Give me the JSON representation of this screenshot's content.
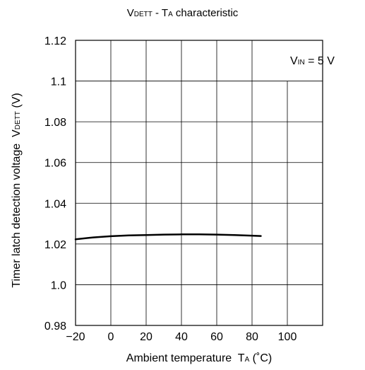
{
  "chart_data": {
    "type": "line",
    "title": {
      "symbol_main": "V",
      "symbol_sub": "DETT",
      "sep": " - ",
      "param_main": "T",
      "param_sub": "A",
      "rest": " characteristic"
    },
    "xlabel": {
      "text": "Ambient temperature  ",
      "symbol_main": "T",
      "symbol_sub": "A",
      "unit": " (˚C)"
    },
    "ylabel": {
      "text": "Timer latch detection voltage  ",
      "symbol_main": "V",
      "symbol_sub": "DETT",
      "unit": " (V)"
    },
    "annotation": {
      "symbol_main": "V",
      "symbol_sub": "IN",
      "rest": " = 5 V",
      "placement": "top-right"
    },
    "xlim": [
      -20,
      120
    ],
    "ylim": [
      0.98,
      1.12
    ],
    "xticks": [
      -20,
      0,
      20,
      40,
      60,
      80,
      100
    ],
    "xtick_labels": [
      "−20",
      "0",
      "20",
      "40",
      "60",
      "80",
      "100"
    ],
    "yticks": [
      0.98,
      1.0,
      1.02,
      1.04,
      1.06,
      1.08,
      1.1,
      1.12
    ],
    "ytick_labels": [
      "0.98",
      "1.0",
      "1.02",
      "1.04",
      "1.06",
      "1.08",
      "1.1",
      "1.12"
    ],
    "grid": true,
    "series": [
      {
        "color": "#000000",
        "x": [
          -20,
          -10,
          0,
          10,
          20,
          30,
          40,
          50,
          60,
          70,
          80,
          85
        ],
        "y": [
          1.0223,
          1.0232,
          1.0238,
          1.0242,
          1.0244,
          1.0246,
          1.0247,
          1.0247,
          1.0246,
          1.0244,
          1.0241,
          1.0239
        ]
      }
    ]
  }
}
